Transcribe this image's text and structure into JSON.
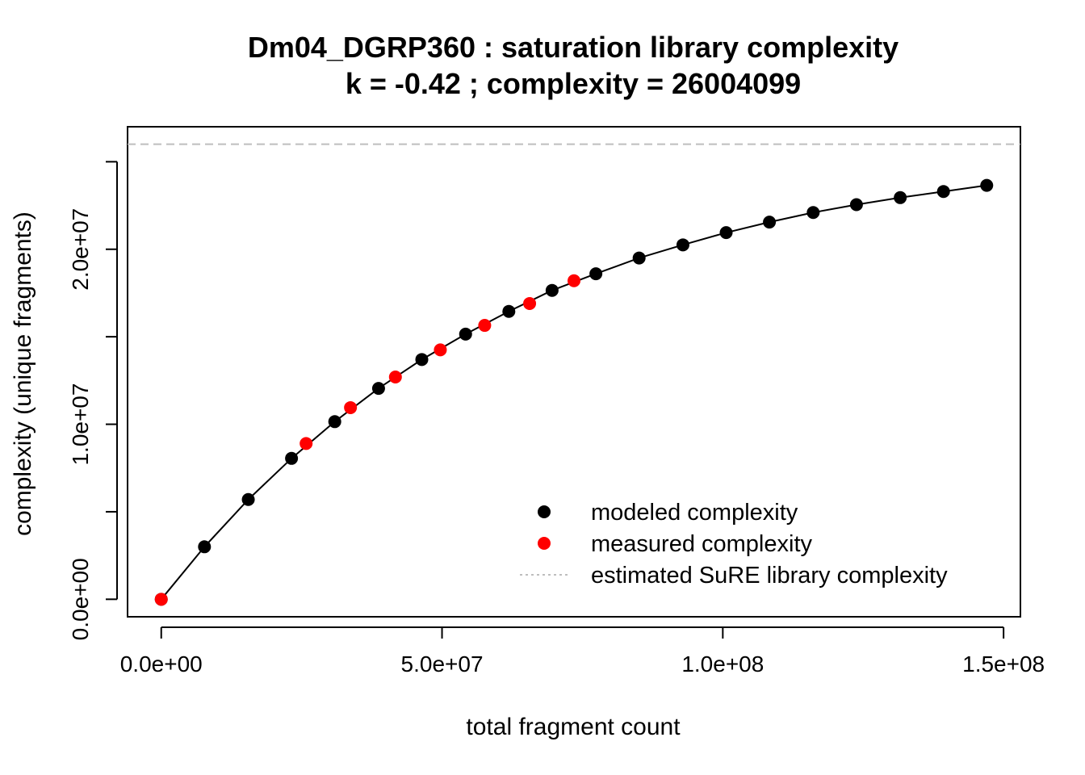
{
  "chart_data": {
    "type": "scatter",
    "title": "Dm04_DGRP360 : saturation library complexity",
    "subtitle": "k = -0.42 ; complexity = 26004099",
    "xlabel": "total fragment count",
    "ylabel": "complexity (unique fragments)",
    "xlim": [
      -6000000,
      153000000
    ],
    "ylim": [
      -1000000,
      27000000
    ],
    "x_ticks": [
      0,
      50000000,
      100000000,
      150000000
    ],
    "x_tick_labels": [
      "0.0e+00",
      "5.0e+07",
      "1.0e+08",
      "1.5e+08"
    ],
    "y_ticks": [
      0,
      5000000,
      10000000,
      15000000,
      20000000,
      25000000
    ],
    "y_tick_labels": [
      "0.0e+00",
      "",
      "1.0e+07",
      "",
      "2.0e+07",
      ""
    ],
    "grid": false,
    "legend_position": "bottom-right",
    "estimated_complexity": 26004099,
    "colors": {
      "modeled": "#000000",
      "measured": "#ff0000",
      "estimate_line": "#bebebe"
    },
    "series": [
      {
        "name": "modeled complexity",
        "style": "points+line",
        "color": "#000000",
        "points": [
          [
            0,
            0
          ],
          [
            7700000,
            3000000
          ],
          [
            15500000,
            5700000
          ],
          [
            23200000,
            8050000
          ],
          [
            30900000,
            10150000
          ],
          [
            38700000,
            12050000
          ],
          [
            46400000,
            13700000
          ],
          [
            54200000,
            15150000
          ],
          [
            61900000,
            16450000
          ],
          [
            69600000,
            17650000
          ],
          [
            77400000,
            18600000
          ],
          [
            85100000,
            19500000
          ],
          [
            92900000,
            20250000
          ],
          [
            100600000,
            20950000
          ],
          [
            108300000,
            21550000
          ],
          [
            116100000,
            22100000
          ],
          [
            123800000,
            22550000
          ],
          [
            131600000,
            22950000
          ],
          [
            139300000,
            23300000
          ],
          [
            147000000,
            23650000
          ]
        ]
      },
      {
        "name": "measured complexity",
        "style": "points",
        "color": "#ff0000",
        "points": [
          [
            0,
            0
          ],
          [
            25800000,
            8900000
          ],
          [
            33700000,
            10950000
          ],
          [
            41700000,
            12700000
          ],
          [
            49700000,
            14250000
          ],
          [
            57600000,
            15650000
          ],
          [
            65600000,
            16900000
          ],
          [
            73500000,
            18200000
          ]
        ]
      },
      {
        "name": "estimated SuRE library complexity",
        "style": "dotted-line",
        "color": "#bebebe",
        "value": 26004099
      }
    ]
  }
}
